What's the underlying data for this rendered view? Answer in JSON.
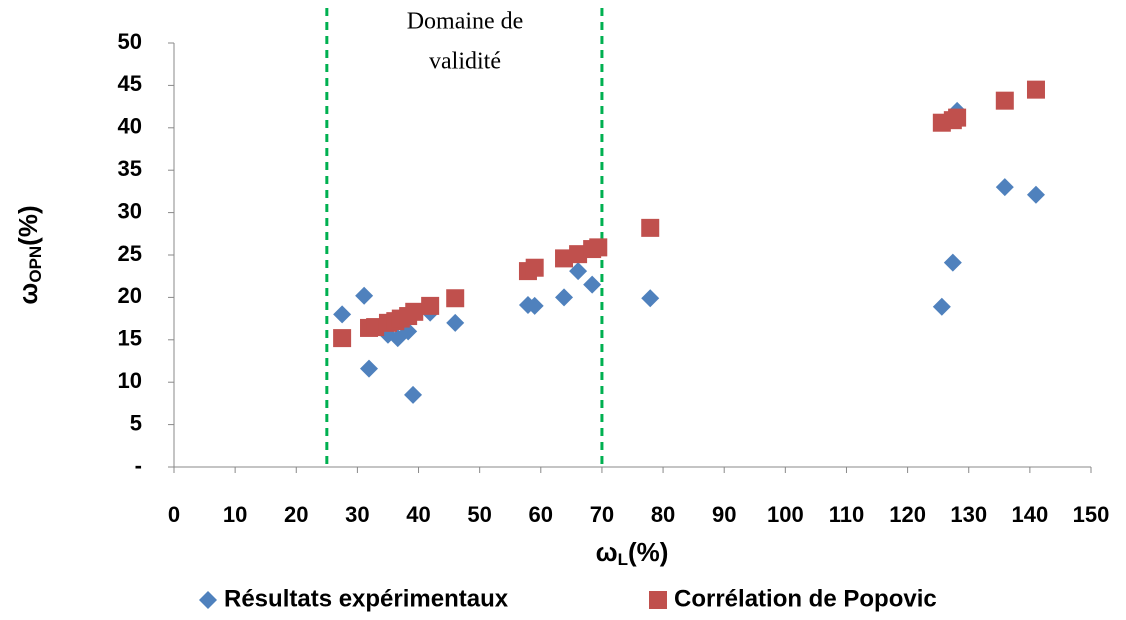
{
  "chart_data": {
    "type": "scatter",
    "x_label": {
      "main": "ω",
      "sub": "L",
      "suffix": "(%)"
    },
    "y_label": {
      "main": "ω",
      "sub": "OPN",
      "suffix": "(%)"
    },
    "annotation": [
      "Domaine de",
      "validité"
    ],
    "vlines": [
      25,
      70
    ],
    "vline_color": "#00b050",
    "xlim": [
      0,
      150
    ],
    "xticks": [
      0,
      10,
      20,
      30,
      40,
      50,
      60,
      70,
      80,
      90,
      100,
      110,
      120,
      130,
      140,
      150
    ],
    "ylim": [
      0,
      50
    ],
    "yticks": [
      {
        "value": 0,
        "label": "-"
      },
      5,
      10,
      15,
      20,
      25,
      30,
      35,
      40,
      45,
      50
    ],
    "series": [
      {
        "name": "Résultats expérimentaux",
        "color": "#4f81bd",
        "marker": "diamond",
        "x": [
          27.5,
          31.9,
          31.1,
          35.0,
          36.6,
          38.3,
          39.1,
          41.9,
          46.0,
          57.9,
          59.0,
          63.8,
          66.1,
          68.4,
          77.9,
          125.6,
          127.4,
          128.1,
          135.9,
          141.0
        ],
        "values": [
          18.0,
          11.6,
          20.2,
          15.6,
          15.2,
          16.0,
          8.5,
          18.2,
          17.0,
          19.1,
          19.0,
          20.0,
          23.1,
          21.5,
          19.9,
          18.9,
          24.1,
          42.0,
          33.0,
          32.1
        ]
      },
      {
        "name": "Corrélation de Popovic",
        "color": "#c0504d",
        "marker": "square",
        "x": [
          27.5,
          31.9,
          32.9,
          35.0,
          36.2,
          37.1,
          38.3,
          39.3,
          41.9,
          46.0,
          57.9,
          59.0,
          63.8,
          66.1,
          68.4,
          69.4,
          77.9,
          125.6,
          127.4,
          128.1,
          135.9,
          141.0
        ],
        "values": [
          15.2,
          16.4,
          16.5,
          17.0,
          17.2,
          17.5,
          17.8,
          18.3,
          19.0,
          19.9,
          23.1,
          23.5,
          24.6,
          25.1,
          25.7,
          25.9,
          28.2,
          40.6,
          40.9,
          41.2,
          43.2,
          44.5
        ]
      }
    ]
  }
}
